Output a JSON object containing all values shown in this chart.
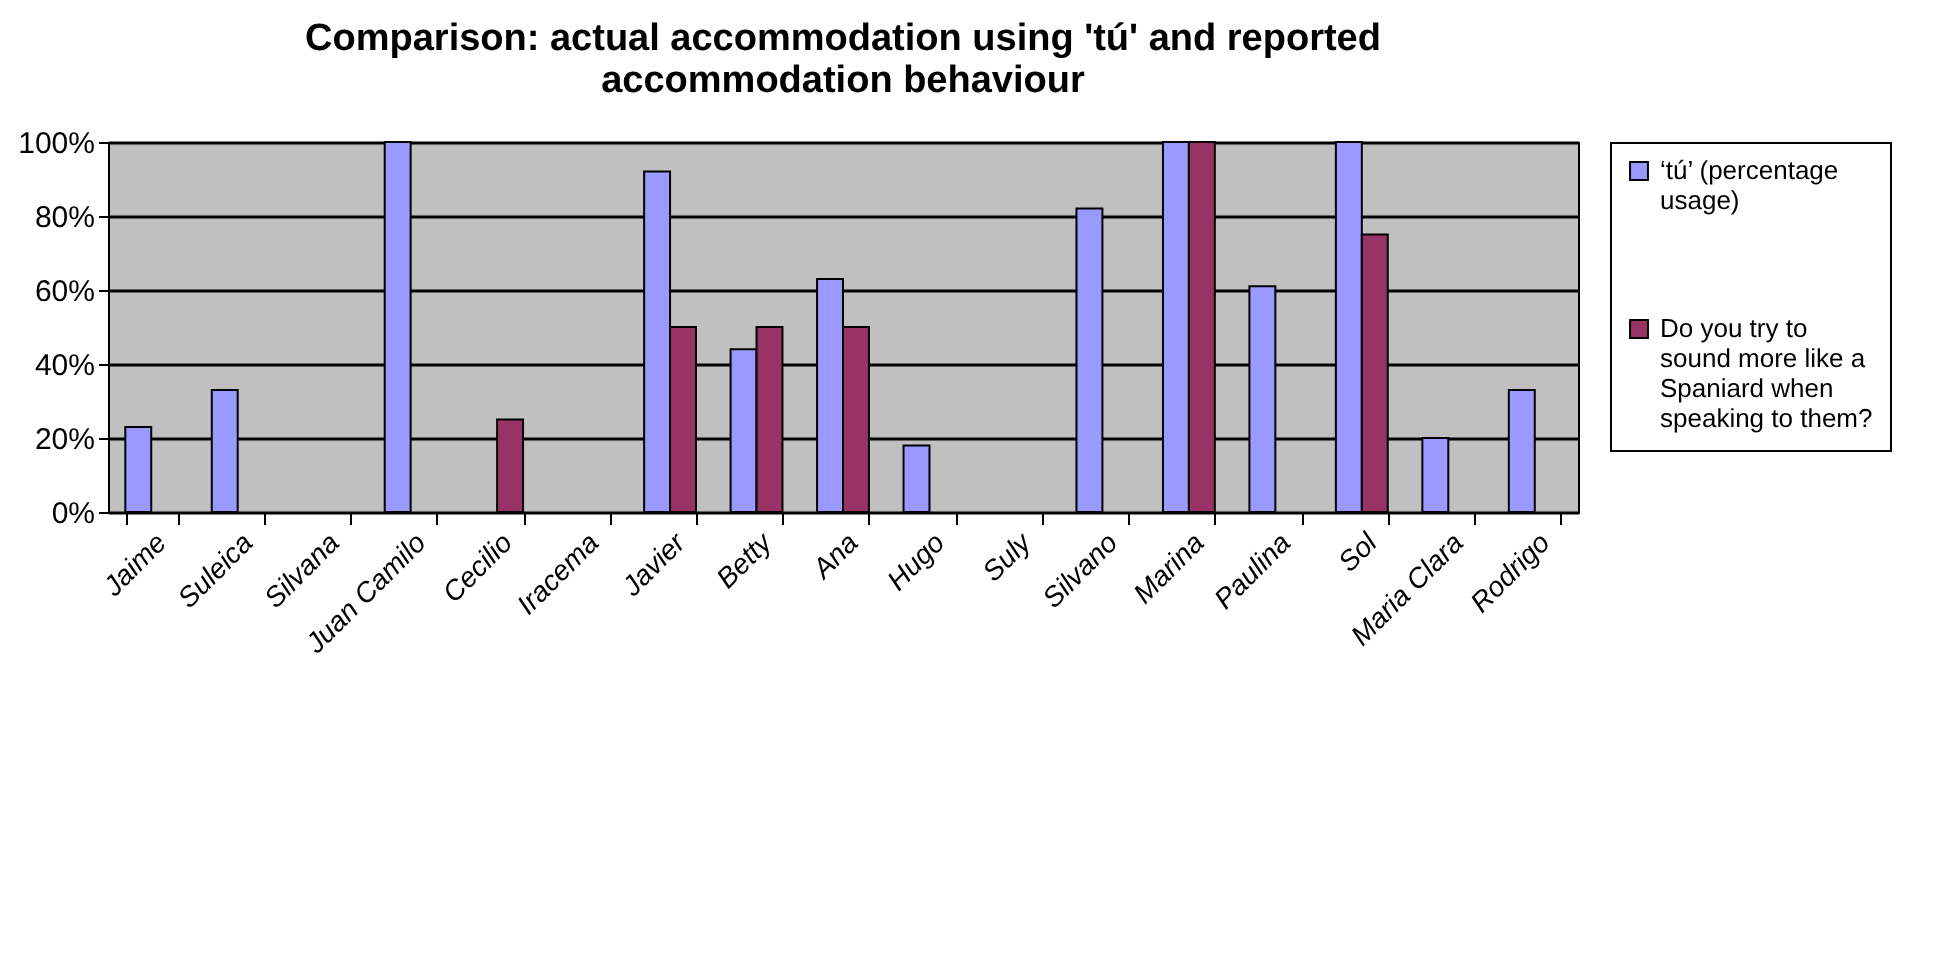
{
  "chart_data": {
    "type": "bar",
    "title": "Comparison: actual accommodation using 'tú' and reported accommodation behaviour",
    "categories": [
      "Jaime",
      "Suleica",
      "Silvana",
      "Juan Camilo",
      "Cecilio",
      "Iracema",
      "Javier",
      "Betty",
      "Ana",
      "Hugo",
      "Suly",
      "Silvano",
      "Marina",
      "Paulina",
      "Sol",
      "Maria Clara",
      "Rodrigo"
    ],
    "series": [
      {
        "name": "‘tú’ (percentage usage)",
        "color": "#9999ff",
        "values": [
          23,
          33,
          null,
          100,
          null,
          null,
          92,
          44,
          63,
          18,
          null,
          82,
          100,
          61,
          100,
          20,
          33
        ]
      },
      {
        "name": "Do you try to sound more like a Spaniard when speaking to them?",
        "color": "#993366",
        "values": [
          null,
          null,
          null,
          null,
          25,
          null,
          50,
          50,
          50,
          null,
          null,
          null,
          100,
          null,
          75,
          null,
          null
        ]
      }
    ],
    "ylim": [
      0,
      100
    ],
    "yticks": [
      {
        "value": 0,
        "label": "0%"
      },
      {
        "value": 20,
        "label": "20%"
      },
      {
        "value": 40,
        "label": "40%"
      },
      {
        "value": 60,
        "label": "60%"
      },
      {
        "value": 80,
        "label": "80%"
      },
      {
        "value": 100,
        "label": "100%"
      }
    ],
    "grid": "y",
    "legend": "right"
  }
}
